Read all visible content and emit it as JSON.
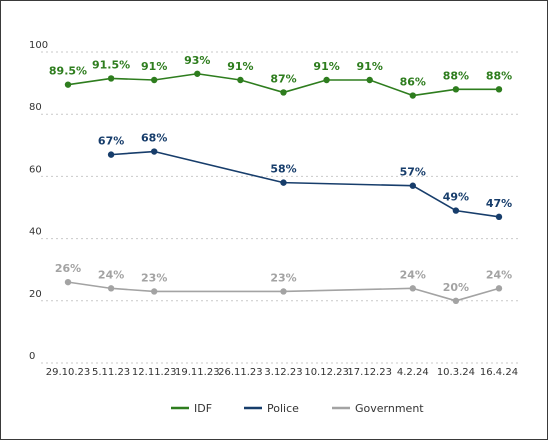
{
  "chart_data": {
    "type": "line",
    "categories": [
      "29.10.23",
      "5.11.23",
      "12.11.23",
      "19.11.23",
      "26.11.23",
      "3.12.23",
      "10.12.23",
      "17.12.23",
      "4.2.24",
      "10.3.24",
      "16.4.24"
    ],
    "ylim": [
      0,
      100
    ],
    "yticks": [
      0,
      20,
      40,
      60,
      80,
      100
    ],
    "grid": "horizontal-dashed",
    "legend_position": "bottom",
    "series": [
      {
        "name": "IDF",
        "color": "#2e7d1e",
        "values": [
          89.5,
          91.5,
          91,
          93,
          91,
          87,
          91,
          91,
          86,
          88,
          88
        ],
        "labels": [
          "89.5%",
          "91.5%",
          "91%",
          "93%",
          "91%",
          "87%",
          "91%",
          "91%",
          "86%",
          "88%",
          "88%"
        ]
      },
      {
        "name": "Police",
        "color": "#173d6b",
        "values": [
          null,
          67,
          68,
          null,
          null,
          58,
          null,
          null,
          57,
          49,
          47
        ],
        "labels": [
          null,
          "67%",
          "68%",
          null,
          null,
          "58%",
          null,
          null,
          "57%",
          "49%",
          "47%"
        ]
      },
      {
        "name": "Government",
        "color": "#a3a3a3",
        "values": [
          26,
          24,
          23,
          null,
          null,
          23,
          null,
          null,
          24,
          20,
          24
        ],
        "labels": [
          "26%",
          "24%",
          "23%",
          null,
          null,
          "23%",
          null,
          null,
          "24%",
          "20%",
          "24%"
        ]
      }
    ]
  }
}
